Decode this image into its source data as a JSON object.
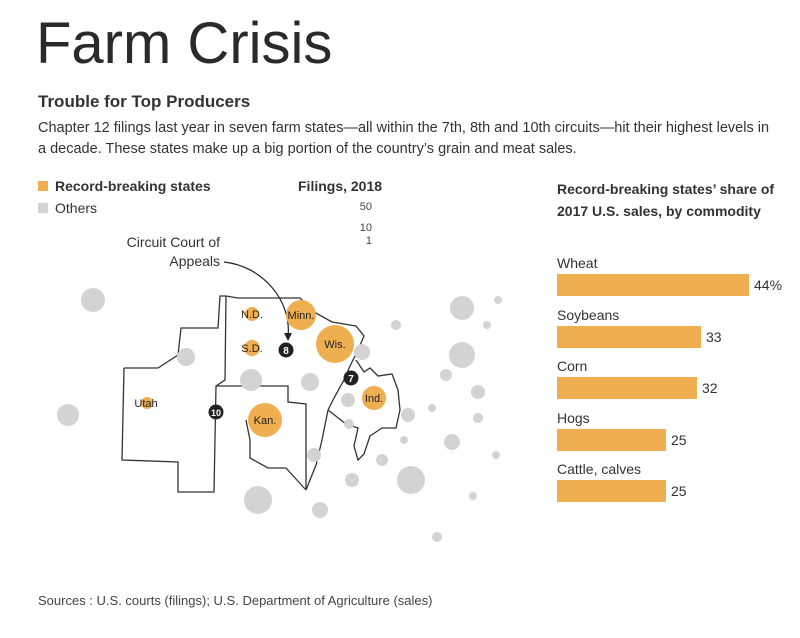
{
  "title": "Farm Crisis",
  "subtitle": "Trouble for Top Producers",
  "description": "Chapter 12 filings last year in seven farm states—all within the 7th, 8th and 10th circuits—hit their highest levels in a decade. These states make up a big portion of the country’s grain and meat sales.",
  "legend": {
    "record_label": "Record-breaking states",
    "others_label": "Others",
    "record_color": "#efae4f",
    "others_color": "#d3d3d3"
  },
  "size_legend": {
    "title": "Filings, 2018",
    "values": [
      "50",
      "10",
      "1"
    ]
  },
  "court_label": "Circuit Court of Appeals",
  "map": {
    "states": [
      "N.D.",
      "Minn.",
      "S.D.",
      "Wis.",
      "Ind.",
      "Utah",
      "Kan."
    ],
    "circuits": [
      "8",
      "7",
      "10"
    ]
  },
  "chart_data": {
    "type": "bar",
    "title": "Record-breaking states’ share of 2017 U.S. sales, by commodity",
    "categories": [
      "Wheat",
      "Soybeans",
      "Corn",
      "Hogs",
      "Cattle, calves"
    ],
    "values": [
      44,
      33,
      32,
      25,
      25
    ],
    "value_labels": [
      "44%",
      "33",
      "32",
      "25",
      "25"
    ],
    "xlim": [
      0,
      44
    ],
    "color": "#efae4f"
  },
  "source": "Sources : U.S. courts (filings); U.S. Department of Agriculture (sales)"
}
